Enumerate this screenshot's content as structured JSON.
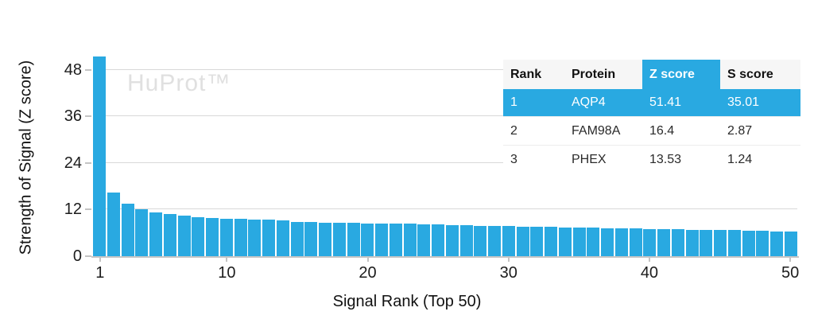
{
  "watermark": "HuProt™",
  "chart_data": {
    "type": "bar",
    "title": "",
    "xlabel": "Signal Rank (Top 50)",
    "ylabel": "Strength of Signal (Z score)",
    "bar_color": "#29a9e1",
    "gridline_color": "#d8d8d8",
    "x_ticks": [
      1,
      10,
      20,
      30,
      40,
      50
    ],
    "y_ticks": [
      0,
      12,
      24,
      36,
      48
    ],
    "ylim": [
      0,
      53.6
    ],
    "xlim": [
      1,
      50
    ],
    "grid": "horizontal",
    "legend": "none",
    "x_range_note": "ranks 1 through 50, one bar per rank",
    "values": [
      51.41,
      16.4,
      13.53,
      12.0,
      11.2,
      10.8,
      10.5,
      10.1,
      9.9,
      9.7,
      9.6,
      9.5,
      9.5,
      9.3,
      8.9,
      8.8,
      8.7,
      8.6,
      8.5,
      8.45,
      8.4,
      8.4,
      8.35,
      8.25,
      8.1,
      7.95,
      7.9,
      7.8,
      7.75,
      7.7,
      7.6,
      7.55,
      7.5,
      7.45,
      7.4,
      7.3,
      7.25,
      7.2,
      7.1,
      7.0,
      6.95,
      6.9,
      6.85,
      6.8,
      6.75,
      6.7,
      6.6,
      6.5,
      6.45,
      6.35
    ]
  },
  "table": {
    "accent_color": "#29a9e1",
    "headers": [
      "Rank",
      "Protein",
      "Z score",
      "S score"
    ],
    "highlighted_col_index": 2,
    "highlighted_row_index": 0,
    "rows": [
      [
        "1",
        "AQP4",
        "51.41",
        "35.01"
      ],
      [
        "2",
        "FAM98A",
        "16.4",
        "2.87"
      ],
      [
        "3",
        "PHEX",
        "13.53",
        "1.24"
      ]
    ]
  }
}
